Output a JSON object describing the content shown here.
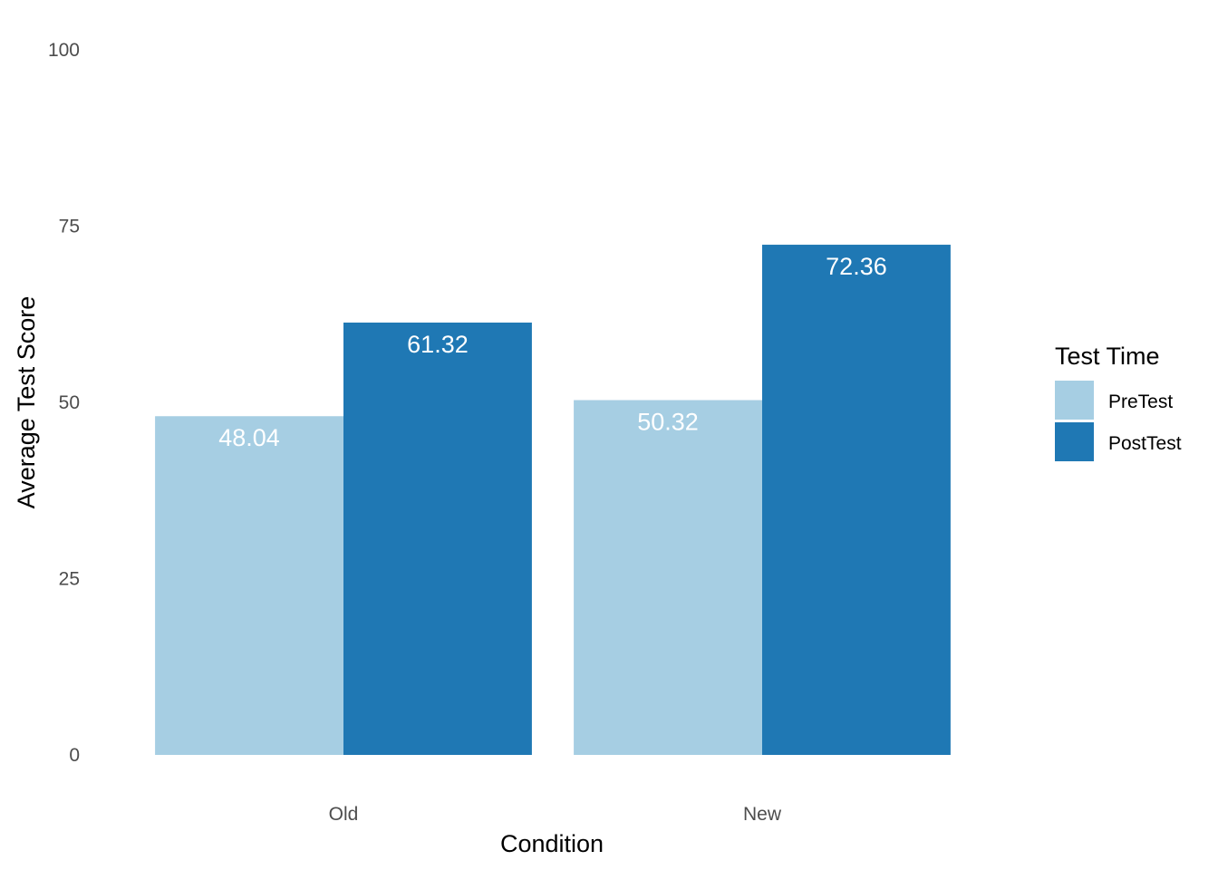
{
  "chart_data": {
    "type": "bar",
    "categories": [
      "Old",
      "New"
    ],
    "series": [
      {
        "name": "PreTest",
        "values": [
          48.04,
          50.32
        ],
        "color": "#a6cee3"
      },
      {
        "name": "PostTest",
        "values": [
          61.32,
          72.36
        ],
        "color": "#1f78b4"
      }
    ],
    "data_labels": [
      [
        "48.04",
        "50.32"
      ],
      [
        "61.32",
        "72.36"
      ]
    ],
    "xlabel": "Condition",
    "ylabel": "Average Test Score",
    "ylim": [
      0,
      100
    ],
    "y_ticks": [
      0,
      25,
      50,
      75,
      100
    ],
    "y_tick_labels": [
      "0",
      "25",
      "50",
      "75",
      "100"
    ],
    "legend": {
      "title": "Test Time",
      "position": "right",
      "entries": [
        "PreTest",
        "PostTest"
      ]
    },
    "grid": false
  }
}
